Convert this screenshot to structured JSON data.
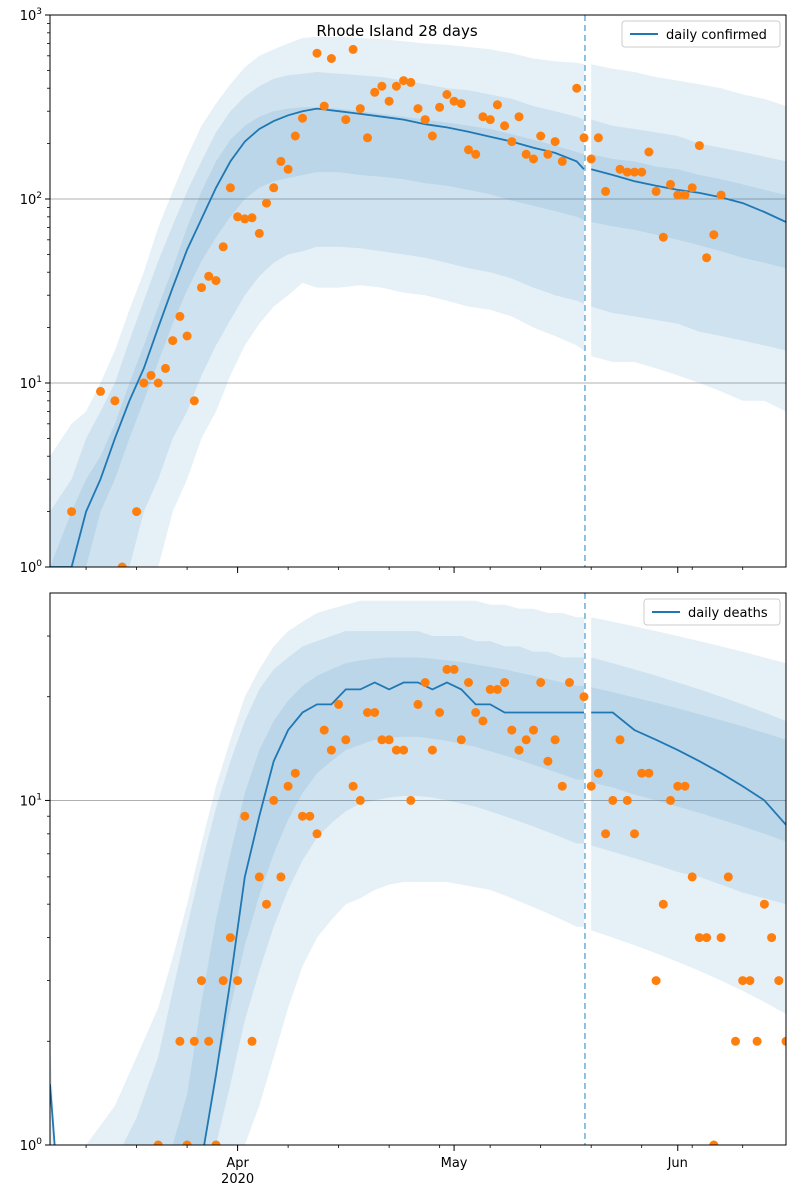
{
  "title": "Rhode Island 28 days",
  "colors": {
    "line": "#1f77b4",
    "points": "#ff7f0e",
    "band": "#1f77b4",
    "grid": "#b0b0b0",
    "forecast_marker": "#6baed6"
  },
  "x_axis": {
    "tick_labels": [
      {
        "label": "Apr",
        "sublabel": "2020",
        "day": 31
      },
      {
        "label": "May",
        "sublabel": "",
        "day": 61
      },
      {
        "label": "Jun",
        "sublabel": "",
        "day": 92
      }
    ]
  },
  "chart_data": [
    {
      "type": "scatter",
      "panel": "confirmed",
      "yscale": "log",
      "ylim": [
        1,
        1000
      ],
      "y_tick_labels": [
        {
          "exp": "0",
          "value": 1
        },
        {
          "exp": "1",
          "value": 10
        },
        {
          "exp": "2",
          "value": 100
        },
        {
          "exp": "3",
          "value": 1000
        }
      ],
      "grid": "y-major",
      "legend": {
        "label": "daily confirmed",
        "position": "top-right"
      },
      "xlim_days": [
        5,
        107
      ],
      "forecast_start_day": 79,
      "observed": {
        "days": [
          8,
          12,
          14,
          15,
          17,
          18,
          19,
          20,
          21,
          22,
          23,
          24,
          25,
          26,
          27,
          28,
          29,
          30,
          31,
          32,
          33,
          34,
          35,
          36,
          37,
          38,
          39,
          40,
          42,
          43,
          44,
          46,
          47,
          48,
          49,
          50,
          51,
          52,
          53,
          54,
          55,
          56,
          57,
          58,
          59,
          60,
          61,
          62,
          63,
          64,
          65,
          66,
          67,
          68,
          69,
          70,
          71,
          72,
          73,
          74,
          75,
          76,
          78,
          79,
          80,
          81,
          82,
          84,
          85,
          86,
          87,
          88,
          89,
          90,
          91,
          92,
          93,
          94,
          95,
          96,
          97,
          98
        ],
        "values": [
          2,
          9,
          8,
          1,
          2,
          10,
          11,
          10,
          12,
          17,
          23,
          18,
          8,
          33,
          38,
          36,
          55,
          115,
          80,
          78,
          79,
          65,
          95,
          115,
          160,
          145,
          220,
          275,
          620,
          320,
          580,
          270,
          650,
          310,
          215,
          380,
          410,
          340,
          410,
          440,
          430,
          310,
          270,
          220,
          315,
          370,
          340,
          330,
          185,
          175,
          280,
          270,
          325,
          250,
          205,
          280,
          175,
          165,
          220,
          175,
          205,
          160,
          400,
          215,
          165,
          215,
          110,
          145,
          140,
          140,
          140,
          180,
          110,
          62,
          120,
          105,
          105,
          115,
          195,
          48,
          64,
          105
        ]
      },
      "bands": {
        "days": [
          5,
          8,
          10,
          12,
          14,
          16,
          18,
          20,
          22,
          24,
          26,
          28,
          30,
          32,
          34,
          36,
          38,
          40,
          42,
          45,
          48,
          51,
          54,
          57,
          60,
          63,
          66,
          69,
          72,
          75,
          78,
          79,
          80,
          83,
          86,
          89,
          92,
          95,
          98,
          101,
          104,
          107
        ],
        "outer_lo": [
          1,
          1,
          1,
          1,
          1,
          1,
          1,
          1,
          2,
          3,
          5,
          7,
          11,
          16,
          21,
          26,
          30,
          35,
          33,
          33,
          34,
          33,
          31,
          30,
          28,
          26,
          25,
          23,
          20,
          18,
          16,
          15,
          14,
          13,
          13,
          12,
          11,
          10,
          9,
          8,
          8,
          7
        ],
        "outer_hi": [
          4,
          6,
          7,
          10,
          15,
          25,
          40,
          70,
          110,
          170,
          250,
          330,
          420,
          520,
          600,
          650,
          700,
          750,
          760,
          760,
          750,
          740,
          720,
          700,
          690,
          670,
          650,
          620,
          580,
          560,
          550,
          540,
          540,
          510,
          490,
          460,
          440,
          420,
          400,
          370,
          350,
          320
        ],
        "mid_lo": [
          1,
          1,
          1,
          1,
          1,
          1,
          2,
          3,
          5,
          7,
          11,
          16,
          22,
          30,
          38,
          45,
          50,
          52,
          55,
          55,
          54,
          52,
          50,
          48,
          45,
          42,
          40,
          37,
          33,
          30,
          28,
          27,
          26,
          24,
          23,
          22,
          21,
          19,
          18,
          17,
          16,
          15
        ],
        "mid_hi": [
          2,
          3,
          5,
          7,
          10,
          17,
          28,
          46,
          72,
          110,
          160,
          230,
          300,
          360,
          410,
          450,
          470,
          480,
          490,
          480,
          470,
          460,
          440,
          420,
          400,
          390,
          370,
          350,
          320,
          300,
          280,
          270,
          270,
          250,
          240,
          230,
          220,
          200,
          190,
          180,
          170,
          160
        ],
        "inner_lo": [
          1,
          1,
          1,
          2,
          3,
          5,
          8,
          13,
          21,
          32,
          46,
          62,
          80,
          100,
          115,
          125,
          130,
          135,
          140,
          140,
          135,
          132,
          128,
          122,
          118,
          112,
          106,
          98,
          92,
          86,
          80,
          77,
          75,
          71,
          68,
          64,
          60,
          56,
          52,
          48,
          45,
          42
        ],
        "inner_hi": [
          1,
          2,
          3,
          4,
          6,
          10,
          16,
          26,
          42,
          70,
          110,
          160,
          210,
          250,
          280,
          300,
          310,
          315,
          315,
          310,
          300,
          290,
          280,
          270,
          260,
          250,
          240,
          225,
          210,
          195,
          180,
          175,
          175,
          165,
          160,
          150,
          145,
          135,
          128,
          120,
          112,
          105
        ],
        "median": [
          1,
          1,
          2,
          3,
          5,
          8,
          12,
          20,
          33,
          53,
          78,
          115,
          160,
          205,
          240,
          265,
          285,
          300,
          310,
          300,
          290,
          280,
          270,
          255,
          245,
          232,
          218,
          205,
          190,
          178,
          160,
          145,
          145,
          135,
          125,
          118,
          112,
          108,
          102,
          95,
          85,
          75
        ]
      }
    },
    {
      "type": "scatter",
      "panel": "deaths",
      "yscale": "log",
      "ylim": [
        1,
        40
      ],
      "y_tick_labels": [
        {
          "exp": "0",
          "value": 1
        },
        {
          "exp": "1",
          "value": 10
        }
      ],
      "grid": "y-major",
      "legend": {
        "label": "daily deaths",
        "position": "top-right"
      },
      "xlim_days": [
        5,
        107
      ],
      "forecast_start_day": 79,
      "observed": {
        "days": [
          20,
          23,
          24,
          25,
          26,
          27,
          28,
          29,
          30,
          31,
          32,
          33,
          34,
          35,
          36,
          37,
          38,
          39,
          40,
          41,
          42,
          43,
          44,
          45,
          46,
          47,
          48,
          49,
          50,
          51,
          52,
          53,
          54,
          55,
          56,
          57,
          58,
          59,
          60,
          61,
          62,
          63,
          64,
          65,
          66,
          67,
          68,
          69,
          70,
          71,
          72,
          73,
          74,
          75,
          76,
          77,
          79,
          80,
          81,
          82,
          83,
          84,
          85,
          86,
          87,
          88,
          89,
          90,
          91,
          92,
          93,
          94,
          95,
          96,
          97,
          98,
          99,
          100,
          101,
          102,
          103,
          104,
          105,
          106,
          107
        ],
        "values": [
          1,
          2,
          1,
          2,
          3,
          2,
          1,
          3,
          4,
          3,
          9,
          2,
          6,
          5,
          10,
          6,
          11,
          12,
          9,
          9,
          8,
          16,
          14,
          19,
          15,
          11,
          10,
          18,
          18,
          15,
          15,
          14,
          14,
          10,
          19,
          22,
          14,
          18,
          24,
          24,
          15,
          22,
          18,
          17,
          21,
          21,
          22,
          16,
          14,
          15,
          16,
          22,
          13,
          15,
          11,
          22,
          20,
          11,
          12,
          8,
          10,
          15,
          10,
          8,
          12,
          12,
          3,
          5,
          10,
          11,
          11,
          6,
          4,
          4,
          1,
          4,
          6,
          2,
          3,
          3,
          2,
          5,
          4,
          3,
          2
        ]
      },
      "bands": {
        "days": [
          5,
          6,
          10,
          14,
          17,
          20,
          22,
          24,
          26,
          28,
          30,
          32,
          34,
          36,
          38,
          40,
          42,
          44,
          46,
          48,
          50,
          52,
          54,
          56,
          58,
          60,
          62,
          64,
          66,
          68,
          70,
          72,
          74,
          76,
          78,
          79,
          80,
          83,
          86,
          89,
          92,
          95,
          98,
          101,
          104,
          107
        ],
        "outer_lo": [
          0.8,
          0.8,
          0.8,
          0.8,
          0.8,
          0.8,
          0.8,
          0.8,
          0.8,
          0.8,
          0.8,
          1.0,
          1.3,
          1.8,
          2.5,
          3.3,
          4.0,
          4.5,
          5.0,
          5.2,
          5.5,
          5.7,
          5.8,
          5.8,
          5.8,
          5.8,
          5.7,
          5.6,
          5.5,
          5.3,
          5.1,
          4.9,
          4.7,
          4.5,
          4.3,
          4.3,
          4.2,
          4.0,
          3.8,
          3.6,
          3.4,
          3.2,
          3.0,
          2.8,
          2.6,
          2.4
        ],
        "outer_hi": [
          2.0,
          0.8,
          1.0,
          1.3,
          1.8,
          2.5,
          3.5,
          5.0,
          7.5,
          11,
          15,
          20,
          24,
          28,
          31,
          33,
          35,
          36,
          37,
          38,
          38,
          38,
          38,
          38,
          38,
          38,
          38,
          38,
          37,
          37,
          36,
          36,
          35,
          35,
          34,
          34,
          34,
          33,
          32,
          31,
          30,
          29,
          28,
          27,
          26,
          25
        ],
        "mid_lo": [
          0.8,
          0.8,
          0.8,
          0.8,
          0.8,
          0.8,
          0.8,
          0.8,
          0.8,
          1.0,
          1.5,
          2.3,
          3.2,
          4.3,
          5.5,
          6.7,
          7.8,
          8.6,
          9.3,
          9.8,
          10,
          10.2,
          10.3,
          10.3,
          10.2,
          10.0,
          9.8,
          9.6,
          9.3,
          9.0,
          8.7,
          8.4,
          8.1,
          7.8,
          7.5,
          7.5,
          7.4,
          7.1,
          6.8,
          6.5,
          6.2,
          6.0,
          5.7,
          5.4,
          5.2,
          5.0
        ],
        "mid_hi": [
          1.0,
          0.8,
          0.8,
          0.9,
          1.2,
          1.8,
          2.8,
          4.3,
          6.5,
          9.5,
          13,
          17,
          21,
          24,
          26,
          28,
          29,
          30,
          31,
          31,
          31,
          31,
          31,
          31,
          30,
          30,
          30,
          29,
          29,
          28,
          28,
          27,
          27,
          26,
          26,
          26,
          26,
          25,
          24,
          23,
          22,
          21,
          20,
          19,
          18,
          17
        ],
        "inner_lo": [
          0.8,
          0.8,
          0.8,
          0.8,
          0.8,
          0.8,
          0.8,
          0.8,
          0.9,
          1.6,
          2.5,
          3.8,
          5.3,
          7.0,
          8.8,
          10.5,
          12,
          13,
          14,
          14.5,
          15,
          15.2,
          15.3,
          15.3,
          15.1,
          14.9,
          14.6,
          14.3,
          13.9,
          13.5,
          13.1,
          12.7,
          12.3,
          11.9,
          11.5,
          11.5,
          11.3,
          10.9,
          10.4,
          10.0,
          9.6,
          9.2,
          8.8,
          8.4,
          8.0,
          7.6
        ],
        "inner_hi": [
          0.8,
          0.8,
          0.8,
          0.8,
          0.8,
          0.8,
          1.0,
          1.4,
          2.6,
          4.5,
          7,
          10.5,
          14,
          17,
          19.5,
          21.5,
          23,
          24,
          25,
          25.5,
          25.8,
          26,
          26,
          26,
          25.8,
          25.5,
          25.2,
          24.8,
          24.4,
          24,
          23.5,
          23,
          22.5,
          22,
          21.5,
          21.5,
          21.3,
          20.6,
          19.9,
          19.2,
          18.5,
          17.8,
          17.1,
          16.4,
          15.7,
          15.0
        ],
        "median": [
          1.5,
          0.8,
          0.8,
          0.8,
          0.8,
          0.8,
          0.8,
          0.8,
          0.9,
          1.6,
          3.0,
          6,
          9,
          13,
          16,
          18,
          19,
          19,
          21,
          21,
          22,
          21,
          22,
          22,
          21,
          22,
          21,
          19,
          19,
          18,
          18,
          18,
          18,
          18,
          18,
          18,
          18,
          18,
          16,
          15,
          14,
          13,
          12,
          11,
          10,
          8.5
        ]
      }
    }
  ]
}
